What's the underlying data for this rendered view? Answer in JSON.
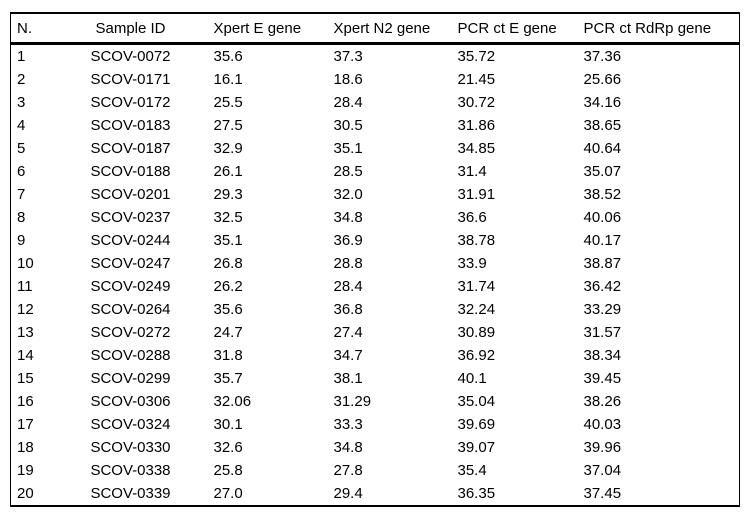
{
  "table": {
    "headers": [
      "N.",
      "Sample ID",
      "Xpert E gene",
      "Xpert N2 gene",
      "PCR ct E gene",
      "PCR ct RdRp gene"
    ],
    "rows": [
      [
        "1",
        "SCOV-0072",
        "35.6",
        "37.3",
        "35.72",
        "37.36"
      ],
      [
        "2",
        "SCOV-0171",
        "16.1",
        "18.6",
        "21.45",
        "25.66"
      ],
      [
        "3",
        "SCOV-0172",
        "25.5",
        "28.4",
        "30.72",
        "34.16"
      ],
      [
        "4",
        "SCOV-0183",
        "27.5",
        "30.5",
        "31.86",
        "38.65"
      ],
      [
        "5",
        "SCOV-0187",
        "32.9",
        "35.1",
        "34.85",
        "40.64"
      ],
      [
        "6",
        "SCOV-0188",
        "26.1",
        "28.5",
        "31.4",
        "35.07"
      ],
      [
        "7",
        "SCOV-0201",
        "29.3",
        "32.0",
        "31.91",
        "38.52"
      ],
      [
        "8",
        "SCOV-0237",
        "32.5",
        "34.8",
        "36.6",
        "40.06"
      ],
      [
        "9",
        "SCOV-0244",
        "35.1",
        "36.9",
        "38.78",
        "40.17"
      ],
      [
        "10",
        "SCOV-0247",
        "26.8",
        "28.8",
        "33.9",
        "38.87"
      ],
      [
        "11",
        "SCOV-0249",
        "26.2",
        "28.4",
        "31.74",
        "36.42"
      ],
      [
        "12",
        "SCOV-0264",
        "35.6",
        "36.8",
        "32.24",
        "33.29"
      ],
      [
        "13",
        "SCOV-0272",
        "24.7",
        "27.4",
        "30.89",
        "31.57"
      ],
      [
        "14",
        "SCOV-0288",
        "31.8",
        "34.7",
        "36.92",
        "38.34"
      ],
      [
        "15",
        "SCOV-0299",
        "35.7",
        "38.1",
        "40.1",
        "39.45"
      ],
      [
        "16",
        "SCOV-0306",
        "32.06",
        "31.29",
        "35.04",
        "38.26"
      ],
      [
        "17",
        "SCOV-0324",
        "30.1",
        "33.3",
        "39.69",
        "40.03"
      ],
      [
        "18",
        "SCOV-0330",
        "32.6",
        "34.8",
        "39.07",
        "39.96"
      ],
      [
        "19",
        "SCOV-0338",
        "25.8",
        "27.8",
        "35.4",
        "37.04"
      ],
      [
        "20",
        "SCOV-0339",
        "27.0",
        "29.4",
        "36.35",
        "37.45"
      ]
    ],
    "colors": {
      "text": "#000000",
      "border": "#000000",
      "background": "#ffffff"
    }
  }
}
